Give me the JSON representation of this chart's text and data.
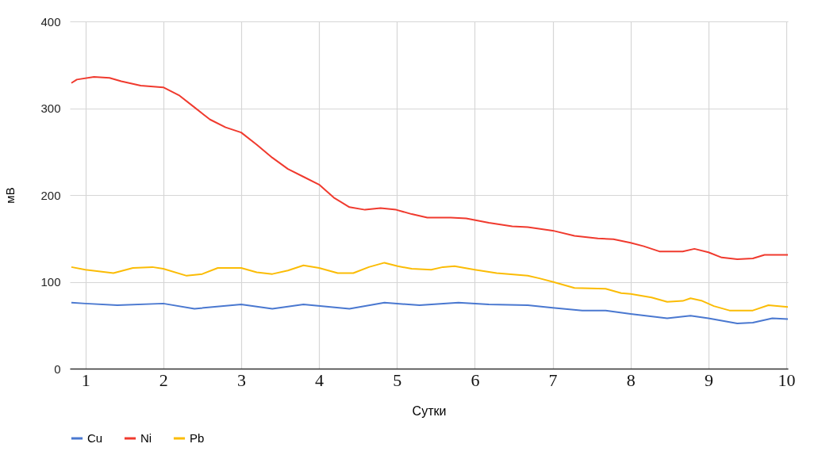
{
  "chart_data": {
    "type": "line",
    "xlabel": "Сутки",
    "ylabel": "мВ",
    "xlim": [
      0.8,
      10.02
    ],
    "xticks": [
      1,
      2,
      3,
      4,
      5,
      6,
      7,
      8,
      9,
      10
    ],
    "ylim": [
      0,
      400
    ],
    "yticks": [
      0,
      100,
      200,
      300,
      400
    ],
    "grid": true,
    "legend": "bottom",
    "marker": "none",
    "line_style": "solid",
    "series": [
      {
        "name": "Cu",
        "color": "#4a78d0",
        "x": [
          0.82,
          1,
          1.41,
          2,
          2.4,
          3,
          3.4,
          3.8,
          4.39,
          4.84,
          5.29,
          5.79,
          6.18,
          6.68,
          7,
          7.38,
          7.68,
          8,
          8.47,
          8.77,
          9,
          9.37,
          9.57,
          9.82,
          10.02
        ],
        "values": [
          76,
          75,
          73,
          75,
          69,
          74,
          69,
          74,
          69,
          76,
          73,
          76,
          74,
          73,
          70,
          67,
          67,
          63,
          58,
          61,
          58,
          52,
          53,
          58,
          57
        ]
      },
      {
        "name": "Ni",
        "color": "#f03a2e",
        "x": [
          0.82,
          0.89,
          1.11,
          1.31,
          1.46,
          1.71,
          2.0,
          2.2,
          2.4,
          2.6,
          2.8,
          3.0,
          3.2,
          3.4,
          3.6,
          3.8,
          4.0,
          4.19,
          4.39,
          4.59,
          4.79,
          4.99,
          5.19,
          5.39,
          5.69,
          5.89,
          6.18,
          6.48,
          6.68,
          7.0,
          7.28,
          7.58,
          7.78,
          8.0,
          8.17,
          8.37,
          8.67,
          8.82,
          9.0,
          9.17,
          9.37,
          9.57,
          9.72,
          10.02
        ],
        "values": [
          329,
          333,
          336,
          335,
          331,
          326,
          324,
          315,
          301,
          287,
          278,
          272,
          258,
          243,
          230,
          221,
          212,
          197,
          186,
          183,
          185,
          183,
          178,
          174,
          174,
          173,
          168,
          164,
          163,
          159,
          153,
          150,
          149,
          145,
          141,
          135,
          135,
          138,
          134,
          128,
          126,
          127,
          131,
          131
        ]
      },
      {
        "name": "Pb",
        "color": "#fbbc05",
        "x": [
          0.82,
          1,
          1.36,
          1.61,
          1.86,
          2.0,
          2.3,
          2.5,
          2.7,
          3.0,
          3.2,
          3.4,
          3.6,
          3.8,
          4.0,
          4.24,
          4.44,
          4.64,
          4.84,
          5.01,
          5.19,
          5.44,
          5.59,
          5.74,
          6.0,
          6.28,
          6.68,
          6.83,
          7.0,
          7.28,
          7.68,
          7.88,
          8.0,
          8.27,
          8.47,
          8.67,
          8.77,
          8.92,
          9.07,
          9.27,
          9.57,
          9.77,
          10.02
        ],
        "values": [
          117,
          114,
          110,
          116,
          117,
          115,
          107,
          109,
          116,
          116,
          111,
          109,
          113,
          119,
          116,
          110,
          110,
          117,
          122,
          118,
          115,
          114,
          117,
          118,
          114,
          110,
          107,
          104,
          100,
          93,
          92,
          87,
          86,
          82,
          77,
          78,
          81,
          78,
          72,
          67,
          67,
          73,
          71
        ]
      }
    ]
  }
}
